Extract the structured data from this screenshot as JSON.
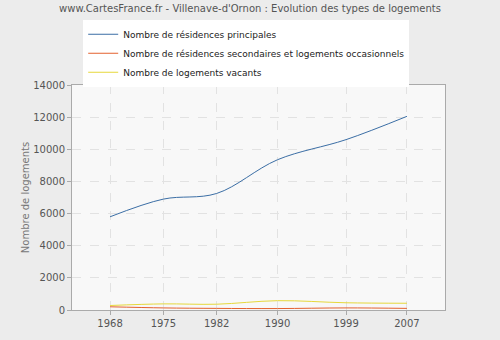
{
  "chart_data": {
    "type": "line",
    "title": "www.CartesFrance.fr - Villenave-d'Ornon : Evolution des types de logements",
    "y_label": "Nombre de logements",
    "x": [
      1968,
      1975,
      1982,
      1990,
      1999,
      2007
    ],
    "series": [
      {
        "name": "Nombre de résidences principales",
        "color": "#3b6ea5",
        "values": [
          5800,
          6900,
          7250,
          9350,
          10600,
          12050
        ]
      },
      {
        "name": "Nombre de résidences secondaires et logements occasionnels",
        "color": "#e4612f",
        "values": [
          200,
          130,
          100,
          90,
          130,
          100
        ]
      },
      {
        "name": "Nombre de logements vacants",
        "color": "#e6d83b",
        "values": [
          280,
          380,
          360,
          580,
          450,
          420
        ]
      }
    ],
    "xlim": [
      1963,
      2012
    ],
    "xticks": [
      1968,
      1975,
      1982,
      1990,
      1999,
      2007
    ],
    "ylim": [
      0,
      14000
    ],
    "yticks": [
      0,
      2000,
      4000,
      6000,
      8000,
      10000,
      12000,
      14000
    ],
    "grid": true,
    "legend": "top"
  }
}
